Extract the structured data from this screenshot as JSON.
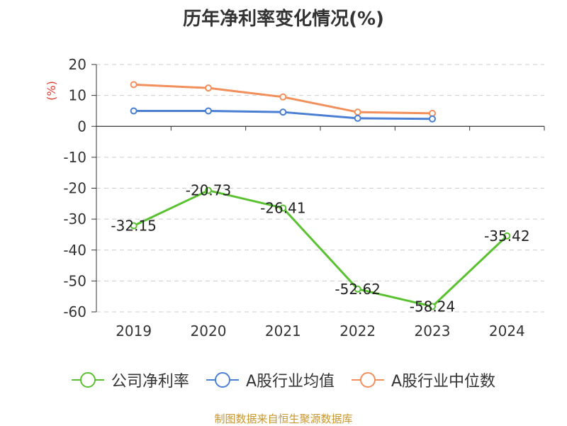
{
  "chart_data": {
    "type": "line",
    "title": "历年净利率变化情况(%)",
    "ylabel": "(%)",
    "categories": [
      "2019",
      "2020",
      "2021",
      "2022",
      "2023",
      "2024"
    ],
    "y_ticks": [
      20,
      10,
      0,
      -10,
      -20,
      -30,
      -40,
      -50,
      -60
    ],
    "ylim": [
      -60,
      20
    ],
    "grid": true,
    "legend_position": "bottom",
    "series": [
      {
        "name": "公司净利率",
        "color": "#5ac130",
        "values": [
          -32.15,
          -20.73,
          -26.41,
          -52.62,
          -58.24,
          -35.42
        ],
        "labels": true
      },
      {
        "name": "A股行业均值",
        "color": "#4a7fd4",
        "values": [
          5.0,
          5.0,
          4.6,
          2.6,
          2.4,
          null
        ],
        "labels": false
      },
      {
        "name": "A股行业中位数",
        "color": "#f28f5a",
        "values": [
          13.5,
          12.4,
          9.5,
          4.6,
          4.2,
          null
        ],
        "labels": false
      }
    ]
  },
  "footer": {
    "source": "制图数据来自恒生聚源数据库"
  }
}
